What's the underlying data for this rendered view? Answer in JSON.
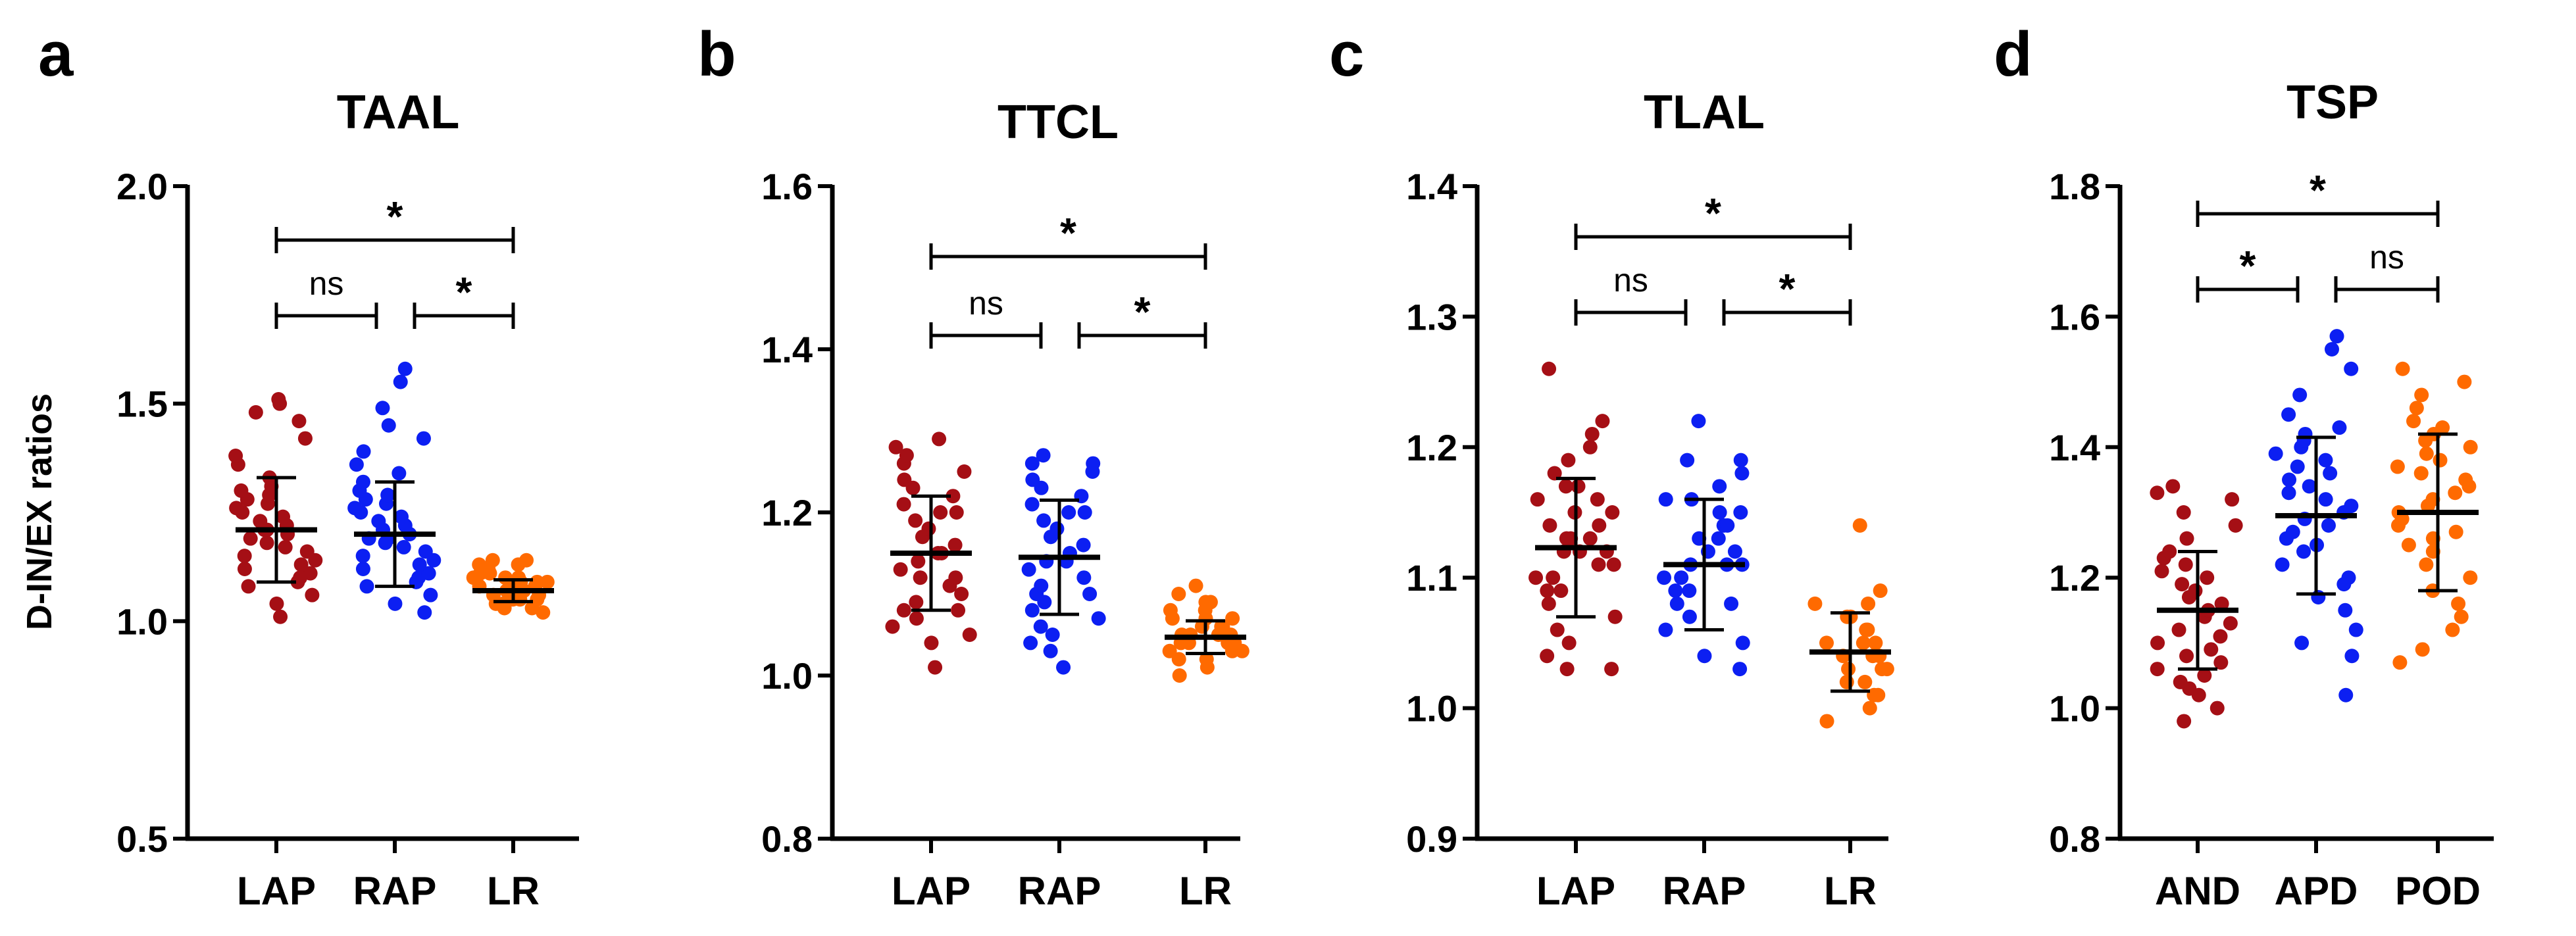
{
  "chart_data": [
    {
      "type": "scatter",
      "panel_label": "a",
      "title": "TAAL",
      "ylabel": "D-IN/EX ratios",
      "ylim": [
        0.5,
        2.0
      ],
      "yticks": [
        "0.5",
        "1.0",
        "1.5",
        "2.0"
      ],
      "categories": [
        "LAP",
        "RAP",
        "LR"
      ],
      "series": [
        {
          "name": "LAP",
          "color": "#a50f15",
          "mean": 1.21,
          "sd": 0.12,
          "values": [
            1.01,
            1.04,
            1.06,
            1.08,
            1.09,
            1.1,
            1.11,
            1.12,
            1.13,
            1.14,
            1.15,
            1.16,
            1.17,
            1.18,
            1.19,
            1.2,
            1.21,
            1.21,
            1.22,
            1.23,
            1.24,
            1.25,
            1.26,
            1.27,
            1.28,
            1.29,
            1.3,
            1.31,
            1.33,
            1.36,
            1.38,
            1.42,
            1.46,
            1.48,
            1.5,
            1.51
          ]
        },
        {
          "name": "RAP",
          "color": "#0c1ff2",
          "mean": 1.2,
          "sd": 0.12,
          "values": [
            1.02,
            1.04,
            1.06,
            1.08,
            1.09,
            1.1,
            1.11,
            1.12,
            1.13,
            1.14,
            1.15,
            1.16,
            1.17,
            1.18,
            1.19,
            1.19,
            1.2,
            1.21,
            1.22,
            1.23,
            1.24,
            1.25,
            1.26,
            1.27,
            1.28,
            1.29,
            1.3,
            1.32,
            1.34,
            1.36,
            1.39,
            1.42,
            1.45,
            1.49,
            1.55,
            1.58
          ]
        },
        {
          "name": "LR",
          "color": "#ff6a00",
          "mean": 1.07,
          "sd": 0.025,
          "values": [
            1.02,
            1.03,
            1.03,
            1.04,
            1.04,
            1.05,
            1.05,
            1.05,
            1.06,
            1.06,
            1.06,
            1.07,
            1.07,
            1.07,
            1.07,
            1.08,
            1.08,
            1.08,
            1.09,
            1.09,
            1.09,
            1.1,
            1.1,
            1.1,
            1.11,
            1.11,
            1.12,
            1.12,
            1.13,
            1.13,
            1.14,
            1.14
          ]
        }
      ],
      "comparisons": [
        {
          "from": 0,
          "to": 1,
          "label": "ns",
          "level": 1
        },
        {
          "from": 1,
          "to": 2,
          "label": "*",
          "level": 1
        },
        {
          "from": 0,
          "to": 2,
          "label": "*",
          "level": 2
        }
      ]
    },
    {
      "type": "scatter",
      "panel_label": "b",
      "title": "TTCL",
      "ylabel": "",
      "ylim": [
        0.8,
        1.6
      ],
      "yticks": [
        "0.8",
        "1.0",
        "1.2",
        "1.4",
        "1.6"
      ],
      "categories": [
        "LAP",
        "RAP",
        "LR"
      ],
      "series": [
        {
          "name": "LAP",
          "color": "#a50f15",
          "mean": 1.15,
          "sd": 0.07,
          "values": [
            1.01,
            1.04,
            1.05,
            1.06,
            1.07,
            1.08,
            1.08,
            1.09,
            1.1,
            1.11,
            1.12,
            1.12,
            1.13,
            1.14,
            1.15,
            1.15,
            1.16,
            1.17,
            1.18,
            1.19,
            1.2,
            1.2,
            1.21,
            1.22,
            1.23,
            1.24,
            1.25,
            1.26,
            1.27,
            1.28,
            1.29
          ]
        },
        {
          "name": "RAP",
          "color": "#0c1ff2",
          "mean": 1.145,
          "sd": 0.07,
          "values": [
            1.01,
            1.03,
            1.04,
            1.05,
            1.06,
            1.07,
            1.08,
            1.09,
            1.1,
            1.1,
            1.11,
            1.12,
            1.13,
            1.14,
            1.14,
            1.15,
            1.16,
            1.17,
            1.18,
            1.19,
            1.2,
            1.2,
            1.21,
            1.22,
            1.23,
            1.24,
            1.25,
            1.26,
            1.26,
            1.27
          ]
        },
        {
          "name": "LR",
          "color": "#ff6a00",
          "mean": 1.047,
          "sd": 0.02,
          "values": [
            1.0,
            1.01,
            1.02,
            1.02,
            1.03,
            1.03,
            1.03,
            1.04,
            1.04,
            1.04,
            1.04,
            1.05,
            1.05,
            1.05,
            1.05,
            1.06,
            1.06,
            1.06,
            1.07,
            1.07,
            1.07,
            1.08,
            1.08,
            1.09,
            1.09,
            1.1,
            1.11
          ]
        }
      ],
      "comparisons": [
        {
          "from": 0,
          "to": 1,
          "label": "ns",
          "level": 1
        },
        {
          "from": 1,
          "to": 2,
          "label": "*",
          "level": 1
        },
        {
          "from": 0,
          "to": 2,
          "label": "*",
          "level": 2
        }
      ]
    },
    {
      "type": "scatter",
      "panel_label": "c",
      "title": "TLAL",
      "ylabel": "",
      "ylim": [
        0.9,
        1.4
      ],
      "yticks": [
        "0.9",
        "1.0",
        "1.1",
        "1.2",
        "1.3",
        "1.4"
      ],
      "categories": [
        "LAP",
        "RAP",
        "LR"
      ],
      "series": [
        {
          "name": "LAP",
          "color": "#a50f15",
          "mean": 1.123,
          "sd": 0.053,
          "values": [
            1.03,
            1.03,
            1.04,
            1.05,
            1.06,
            1.07,
            1.08,
            1.09,
            1.09,
            1.1,
            1.1,
            1.11,
            1.11,
            1.12,
            1.12,
            1.12,
            1.13,
            1.13,
            1.13,
            1.14,
            1.14,
            1.15,
            1.15,
            1.16,
            1.16,
            1.17,
            1.17,
            1.18,
            1.19,
            1.2,
            1.21,
            1.22,
            1.26
          ]
        },
        {
          "name": "RAP",
          "color": "#0c1ff2",
          "mean": 1.11,
          "sd": 0.05,
          "values": [
            1.03,
            1.04,
            1.05,
            1.06,
            1.07,
            1.08,
            1.08,
            1.09,
            1.09,
            1.1,
            1.1,
            1.11,
            1.11,
            1.11,
            1.12,
            1.12,
            1.13,
            1.13,
            1.14,
            1.14,
            1.15,
            1.15,
            1.16,
            1.16,
            1.17,
            1.18,
            1.19,
            1.19,
            1.22
          ]
        },
        {
          "name": "LR",
          "color": "#ff6a00",
          "mean": 1.043,
          "sd": 0.03,
          "values": [
            0.99,
            1.0,
            1.01,
            1.01,
            1.02,
            1.02,
            1.03,
            1.03,
            1.03,
            1.04,
            1.04,
            1.04,
            1.05,
            1.05,
            1.05,
            1.06,
            1.06,
            1.07,
            1.07,
            1.08,
            1.08,
            1.09,
            1.14
          ]
        }
      ],
      "comparisons": [
        {
          "from": 0,
          "to": 1,
          "label": "ns",
          "level": 1
        },
        {
          "from": 1,
          "to": 2,
          "label": "*",
          "level": 1
        },
        {
          "from": 0,
          "to": 2,
          "label": "*",
          "level": 2
        }
      ]
    },
    {
      "type": "scatter",
      "panel_label": "d",
      "title": "TSP",
      "ylabel": "",
      "ylim": [
        0.8,
        1.8
      ],
      "yticks": [
        "0.8",
        "1.0",
        "1.2",
        "1.4",
        "1.6",
        "1.8"
      ],
      "categories": [
        "AND",
        "APD",
        "POD"
      ],
      "series": [
        {
          "name": "AND",
          "color": "#a50f15",
          "mean": 1.15,
          "sd": 0.09,
          "values": [
            0.98,
            1.0,
            1.02,
            1.03,
            1.04,
            1.05,
            1.06,
            1.07,
            1.08,
            1.09,
            1.1,
            1.11,
            1.12,
            1.13,
            1.14,
            1.15,
            1.16,
            1.17,
            1.18,
            1.19,
            1.2,
            1.21,
            1.22,
            1.23,
            1.24,
            1.26,
            1.28,
            1.3,
            1.32,
            1.33,
            1.34
          ]
        },
        {
          "name": "APD",
          "color": "#0c1ff2",
          "mean": 1.295,
          "sd": 0.12,
          "values": [
            1.02,
            1.08,
            1.1,
            1.12,
            1.15,
            1.17,
            1.19,
            1.2,
            1.22,
            1.24,
            1.25,
            1.26,
            1.27,
            1.28,
            1.29,
            1.3,
            1.31,
            1.32,
            1.33,
            1.34,
            1.35,
            1.36,
            1.37,
            1.38,
            1.39,
            1.4,
            1.41,
            1.42,
            1.43,
            1.45,
            1.48,
            1.52,
            1.55,
            1.57
          ]
        },
        {
          "name": "POD",
          "color": "#ff6a00",
          "mean": 1.3,
          "sd": 0.12,
          "values": [
            1.07,
            1.09,
            1.12,
            1.14,
            1.16,
            1.18,
            1.2,
            1.22,
            1.24,
            1.25,
            1.26,
            1.27,
            1.28,
            1.29,
            1.3,
            1.31,
            1.32,
            1.33,
            1.34,
            1.35,
            1.36,
            1.37,
            1.38,
            1.39,
            1.4,
            1.41,
            1.42,
            1.43,
            1.44,
            1.46,
            1.48,
            1.5,
            1.52
          ]
        }
      ],
      "comparisons": [
        {
          "from": 0,
          "to": 1,
          "label": "*",
          "level": 1
        },
        {
          "from": 1,
          "to": 2,
          "label": "ns",
          "level": 1
        },
        {
          "from": 0,
          "to": 2,
          "label": "*",
          "level": 2
        }
      ]
    }
  ]
}
